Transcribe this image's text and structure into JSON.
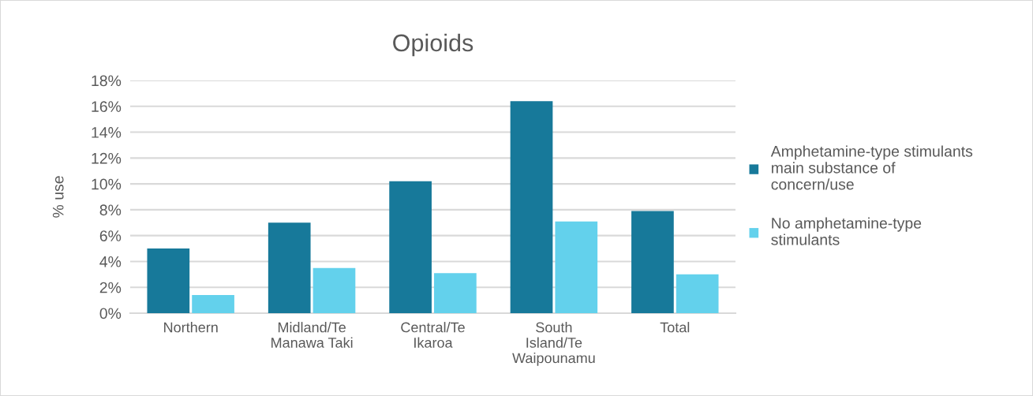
{
  "chart_data": {
    "type": "bar",
    "title": "Opioids",
    "ylabel": "% use",
    "categories": [
      "Northern",
      "Midland/Te\nManawa Taki",
      "Central/Te\nIkaroa",
      "South\nIsland/Te\nWaipounamu",
      "Total"
    ],
    "series": [
      {
        "name": "Amphetamine-type stimulants\nmain substance of\nconcern/use",
        "color": "#17799a",
        "values": [
          5.0,
          7.0,
          10.2,
          16.4,
          7.9
        ]
      },
      {
        "name": "No amphetamine-type\nstimulants",
        "color": "#63d1ec",
        "values": [
          1.4,
          3.5,
          3.1,
          7.1,
          3.0
        ]
      }
    ],
    "ylim": [
      0,
      18
    ],
    "yticks": [
      {
        "value": 0,
        "label": "0%"
      },
      {
        "value": 2,
        "label": "2%"
      },
      {
        "value": 4,
        "label": "4%"
      },
      {
        "value": 6,
        "label": "6%"
      },
      {
        "value": 8,
        "label": "8%"
      },
      {
        "value": 10,
        "label": "10%"
      },
      {
        "value": 12,
        "label": "12%"
      },
      {
        "value": 14,
        "label": "14%"
      },
      {
        "value": 16,
        "label": "16%"
      },
      {
        "value": 18,
        "label": "18%"
      }
    ],
    "grid": "y",
    "legend": "right"
  }
}
